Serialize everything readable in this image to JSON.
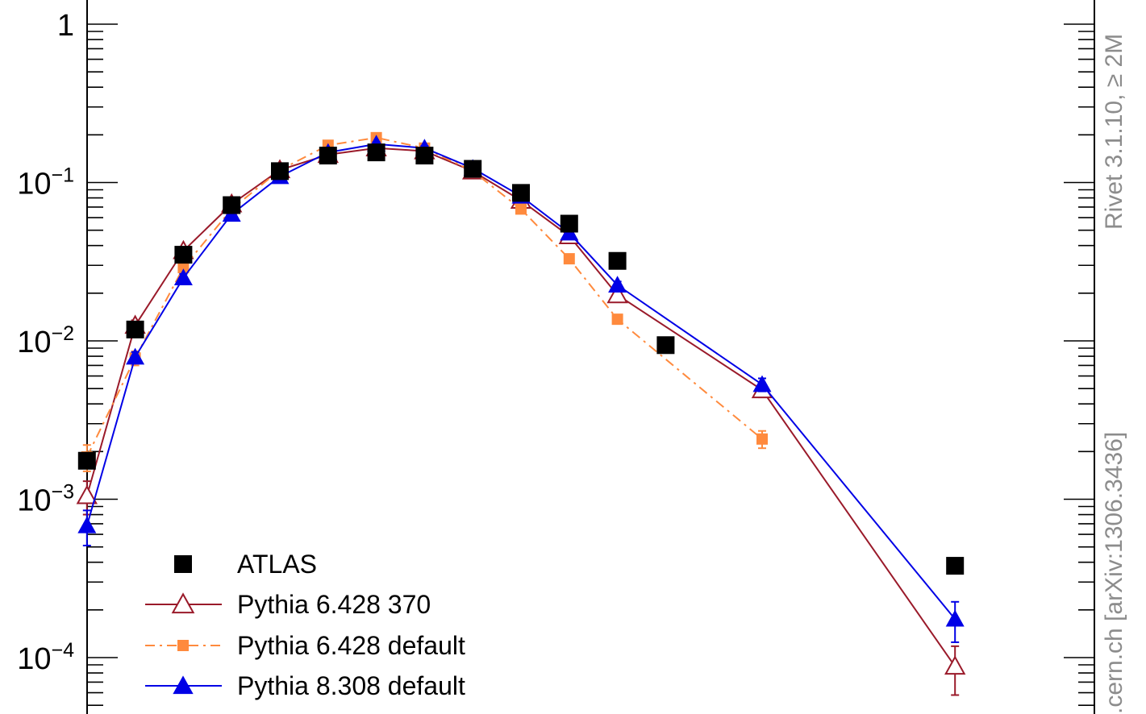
{
  "chart_data": {
    "type": "scatter",
    "title": "",
    "xlabel": "",
    "ylabel": "",
    "yscale": "log",
    "ylim": [
      4.2e-05,
      1.6
    ],
    "xlim": [
      0,
      20
    ],
    "grid": false,
    "legend_position": "bottom-left",
    "y_tick_labels": [
      {
        "value": 1,
        "mantissa": "1",
        "exponent": ""
      },
      {
        "value": 0.1,
        "mantissa": "10",
        "exponent": "−1"
      },
      {
        "value": 0.01,
        "mantissa": "10",
        "exponent": "−2"
      },
      {
        "value": 0.001,
        "mantissa": "10",
        "exponent": "−3"
      },
      {
        "value": 0.0001,
        "mantissa": "10",
        "exponent": "−4"
      }
    ],
    "series": [
      {
        "name": "ATLAS",
        "style": "marker-only",
        "marker": "square-filled",
        "color": "#000000",
        "x": [
          1,
          2,
          3,
          4,
          5,
          6,
          7,
          8,
          9,
          10,
          11,
          12,
          13,
          15,
          19
        ],
        "y": [
          0.00175,
          0.0118,
          0.035,
          0.072,
          0.118,
          0.148,
          0.155,
          0.148,
          0.122,
          0.086,
          0.055,
          0.032,
          0.0094,
          null,
          0.00038
        ],
        "err": [
          0.0001,
          0.0005,
          0.001,
          0.002,
          0.003,
          0.003,
          0.003,
          0.003,
          0.003,
          0.002,
          0.002,
          0.001,
          0.0004,
          null,
          2e-05
        ]
      },
      {
        "name": "Pythia 6.428 370",
        "style": "solid",
        "marker": "triangle-open",
        "color": "#9a1a2a",
        "x": [
          1,
          2,
          3,
          4,
          5,
          6,
          7,
          8,
          9,
          10,
          11,
          12,
          13,
          15,
          19
        ],
        "y": [
          0.00105,
          0.0125,
          0.037,
          0.073,
          0.12,
          0.15,
          0.165,
          0.158,
          0.118,
          0.077,
          0.046,
          0.0195,
          null,
          0.0049,
          8.8e-05
        ],
        "err": [
          0.00025,
          0.001,
          0.002,
          0.003,
          0.004,
          0.005,
          0.005,
          0.005,
          0.004,
          0.003,
          0.002,
          0.0012,
          null,
          0.0005,
          3e-05
        ]
      },
      {
        "name": "Pythia 6.428 default",
        "style": "dash-dot",
        "marker": "square-filled",
        "color": "#ff8a3d",
        "x": [
          1,
          2,
          3,
          4,
          5,
          6,
          7,
          8,
          9,
          10,
          11,
          12,
          13,
          15,
          19
        ],
        "y": [
          0.00185,
          0.0078,
          0.029,
          0.068,
          0.12,
          0.172,
          0.192,
          0.165,
          0.118,
          0.068,
          0.033,
          0.0137,
          null,
          0.0024,
          null
        ],
        "err": [
          0.00035,
          0.0008,
          0.002,
          0.003,
          0.004,
          0.005,
          0.006,
          0.005,
          0.004,
          0.003,
          0.0015,
          0.0009,
          null,
          0.0003,
          null
        ]
      },
      {
        "name": "Pythia 8.308 default",
        "style": "solid",
        "marker": "triangle-filled",
        "color": "#0000e6",
        "x": [
          1,
          2,
          3,
          4,
          5,
          6,
          7,
          8,
          9,
          10,
          11,
          12,
          13,
          15,
          19
        ],
        "y": [
          0.00068,
          0.0079,
          0.025,
          0.063,
          0.109,
          0.155,
          0.175,
          0.165,
          0.123,
          0.082,
          0.048,
          0.0225,
          null,
          0.0053,
          0.000175
        ],
        "err": [
          0.00017,
          0.0006,
          0.0015,
          0.003,
          0.004,
          0.005,
          0.005,
          0.005,
          0.004,
          0.003,
          0.002,
          0.0012,
          null,
          0.0005,
          5e-05
        ]
      }
    ]
  },
  "side_labels": {
    "top": "Rivet 3.1.10, ≥ 2M",
    "bottom": ".cern.ch [arXiv:1306.3436]"
  }
}
